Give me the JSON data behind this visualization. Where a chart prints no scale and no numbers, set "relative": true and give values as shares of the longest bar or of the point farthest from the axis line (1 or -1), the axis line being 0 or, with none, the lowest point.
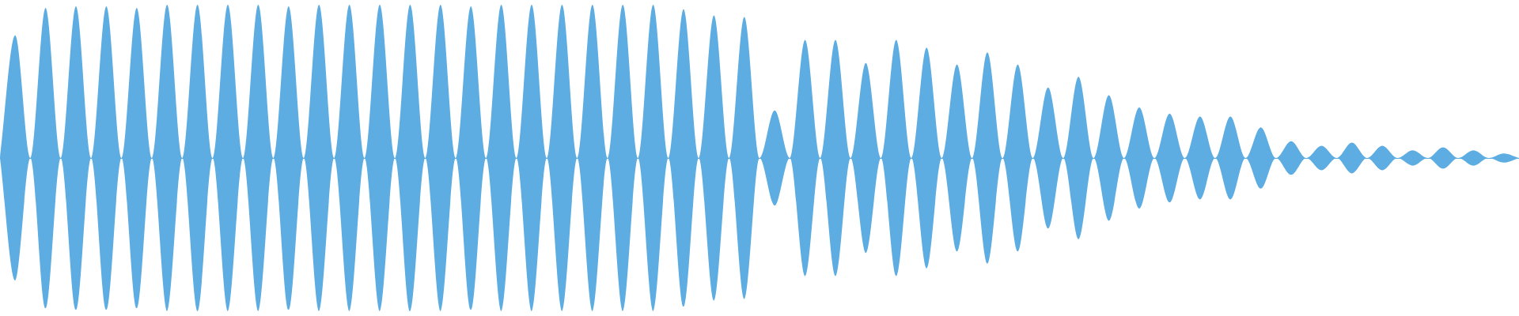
{
  "chart_data": {
    "type": "area",
    "relative": true,
    "legend": false,
    "grid": false,
    "tick_labels": false,
    "categories": [
      null,
      null,
      null,
      null,
      null,
      null,
      null,
      null,
      null,
      null,
      null,
      null,
      null,
      null,
      null,
      null,
      null,
      null,
      null,
      null,
      null,
      null,
      null,
      null,
      null,
      null,
      null,
      null,
      null,
      null,
      null,
      null,
      null,
      null,
      null,
      null,
      null,
      null,
      null,
      null,
      null,
      null,
      null,
      null,
      null,
      null,
      null,
      null,
      null,
      null,
      null,
      null,
      null,
      null,
      null,
      null,
      null,
      null,
      null,
      null,
      null,
      null,
      null,
      null,
      null,
      null,
      null,
      null,
      null,
      null,
      null,
      null,
      null,
      null,
      null,
      null,
      null,
      null,
      null,
      null,
      null,
      null,
      null,
      null,
      null,
      null,
      null,
      null,
      null,
      null,
      null,
      null,
      null,
      null,
      null,
      null,
      null,
      null,
      null,
      null,
      null
    ],
    "series": [
      {
        "color": "#5dade2",
        "values": [
          0,
          0.8,
          0,
          0.98,
          0,
          0.99,
          0,
          0.99,
          0,
          0.98,
          0,
          1,
          0,
          1,
          0,
          1,
          0,
          1,
          0,
          0.99,
          0,
          1,
          0,
          1,
          0,
          1,
          0,
          1,
          0,
          1,
          0,
          0.99,
          0,
          1,
          0,
          1,
          0,
          1,
          0,
          1,
          0,
          1,
          0,
          1,
          0,
          0.97,
          0,
          0.93,
          0,
          0.92,
          0,
          0.31,
          0,
          0.77,
          0,
          0.77,
          0,
          0.62,
          0,
          0.77,
          0,
          0.72,
          0,
          0.61,
          0,
          0.69,
          0,
          0.61,
          0,
          0.46,
          0,
          0.53,
          0,
          0.41,
          0,
          0.33,
          0,
          0.29,
          0,
          0.27,
          0,
          0.27,
          0,
          0.2,
          0,
          0.11,
          0,
          0.08,
          0,
          0.1,
          0,
          0.08,
          0,
          0.05,
          0,
          0.07,
          0,
          0.05,
          0,
          0.03,
          0
        ]
      },
      {
        "color": "#5dade2",
        "values": [
          0,
          -0.8,
          0,
          -0.98,
          0,
          -0.99,
          0,
          -0.99,
          0,
          -0.98,
          0,
          -1,
          0,
          -1,
          0,
          -1,
          0,
          -1,
          0,
          -0.99,
          0,
          -1,
          0,
          -1,
          0,
          -1,
          0,
          -1,
          0,
          -1,
          0,
          -0.99,
          0,
          -1,
          0,
          -1,
          0,
          -1,
          0,
          -1,
          0,
          -1,
          0,
          -1,
          0,
          -0.97,
          0,
          -0.93,
          0,
          -0.92,
          0,
          -0.31,
          0,
          -0.77,
          0,
          -0.77,
          0,
          -0.62,
          0,
          -0.77,
          0,
          -0.72,
          0,
          -0.61,
          0,
          -0.69,
          0,
          -0.61,
          0,
          -0.46,
          0,
          -0.53,
          0,
          -0.41,
          0,
          -0.33,
          0,
          -0.29,
          0,
          -0.27,
          0,
          -0.27,
          0,
          -0.2,
          0,
          -0.11,
          0,
          -0.08,
          0,
          -0.1,
          0,
          -0.08,
          0,
          -0.05,
          0,
          -0.07,
          0,
          -0.05,
          0,
          -0.03,
          0
        ]
      }
    ]
  }
}
